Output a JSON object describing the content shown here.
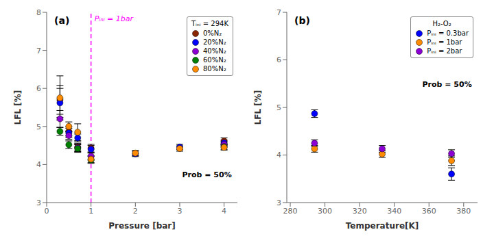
{
  "chart_data": [
    {
      "type": "scatter",
      "title": "(a)",
      "xlabel": "Pressure [bar]",
      "ylabel": "LFL [%]",
      "xlim": [
        0,
        4.3
      ],
      "ylim": [
        3,
        8
      ],
      "xticks": [
        0,
        1,
        2,
        3,
        4
      ],
      "yticks": [
        3,
        4,
        5,
        6,
        7,
        8
      ],
      "grid": false,
      "legend": "upper right",
      "legend_title": "Tᵢₙᵢ = 294K",
      "annotations": [
        "Prob = 50%"
      ],
      "vlines": [
        {
          "x": 1.0,
          "label": "Pᵢₙᵢ = 1bar",
          "color": "#FF00FF",
          "line_style": "dashed"
        }
      ],
      "series": [
        {
          "name": "0%N₂",
          "color": "#8B2500",
          "x": [
            0.3,
            0.5,
            0.7,
            1.0,
            4.0
          ],
          "values": [
            5.7,
            4.87,
            4.46,
            4.43,
            4.62
          ],
          "errors": [
            0.38,
            0.12,
            0.1,
            0.1,
            0.08
          ]
        },
        {
          "name": "20%N₂",
          "color": "#0000FF",
          "x": [
            0.3,
            0.5,
            0.7,
            1.0,
            2.0,
            3.0,
            4.0
          ],
          "values": [
            5.62,
            4.83,
            4.7,
            4.4,
            4.28,
            4.46,
            4.57
          ],
          "errors": [
            0.38,
            0.12,
            0.1,
            0.1,
            0.07,
            0.07,
            0.07
          ]
        },
        {
          "name": "40%N₂",
          "color": "#8B00D3",
          "x": [
            0.3,
            0.5,
            0.7,
            1.0,
            4.0
          ],
          "values": [
            5.2,
            4.76,
            4.44,
            4.22,
            4.53
          ],
          "errors": [
            0.22,
            0.1,
            0.1,
            0.1,
            0.07
          ]
        },
        {
          "name": "60%N₂",
          "color": "#008000",
          "x": [
            0.3,
            0.5,
            0.7,
            1.0,
            4.0
          ],
          "values": [
            4.87,
            4.52,
            4.42,
            4.12,
            4.47
          ],
          "errors": [
            0.1,
            0.1,
            0.1,
            0.09,
            0.07
          ]
        },
        {
          "name": "80%N₂",
          "color": "#FF8C00",
          "x": [
            0.3,
            0.5,
            0.7,
            1.0,
            2.0,
            3.0,
            4.0
          ],
          "values": [
            5.75,
            5.0,
            4.85,
            4.14,
            4.3,
            4.42,
            4.45
          ],
          "errors": [
            0.58,
            0.12,
            0.22,
            0.09,
            0.07,
            0.07,
            0.07
          ]
        }
      ]
    },
    {
      "type": "scatter",
      "title": "(b)",
      "xlabel": "Temperature[K]",
      "ylabel": "LFL [%]",
      "xlim": [
        278,
        388
      ],
      "ylim": [
        3,
        7
      ],
      "xticks": [
        280,
        300,
        320,
        340,
        360,
        380
      ],
      "yticks": [
        3,
        4,
        5,
        6,
        7
      ],
      "grid": false,
      "legend": "upper right",
      "legend_title": "H₂-O₂",
      "annotations": [
        "Prob = 50%"
      ],
      "series": [
        {
          "name": "Pᵢₙᵢ = 0.3bar",
          "color": "#0000FF",
          "x": [
            294,
            373
          ],
          "values": [
            4.87,
            3.6
          ],
          "errors": [
            0.08,
            0.13
          ]
        },
        {
          "name": "Pᵢₙᵢ = 1bar",
          "color": "#FF8C00",
          "x": [
            294,
            333,
            373
          ],
          "values": [
            4.13,
            4.02,
            3.88
          ],
          "errors": [
            0.07,
            0.07,
            0.1
          ]
        },
        {
          "name": "Pᵢₙᵢ = 2bar",
          "color": "#8B00D3",
          "x": [
            294,
            333,
            373
          ],
          "values": [
            4.25,
            4.13,
            4.03
          ],
          "errors": [
            0.07,
            0.07,
            0.08
          ]
        }
      ]
    }
  ]
}
